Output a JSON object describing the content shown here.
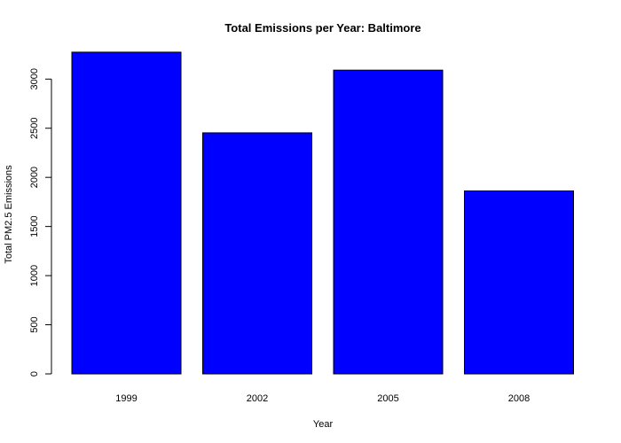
{
  "chart_data": {
    "type": "bar",
    "title": "Total Emissions per Year: Baltimore",
    "xlabel": "Year",
    "ylabel": "Total PM2.5 Emissions",
    "categories": [
      "1999",
      "2002",
      "2005",
      "2008"
    ],
    "values": [
      3274,
      2453,
      3091,
      1862
    ],
    "ylim": [
      0,
      3300
    ],
    "yticks": [
      0,
      500,
      1000,
      1500,
      2000,
      2500,
      3000
    ],
    "bar_color": "#0000FF",
    "bar_border_color": "#000000",
    "grid": false,
    "legend": "none"
  }
}
